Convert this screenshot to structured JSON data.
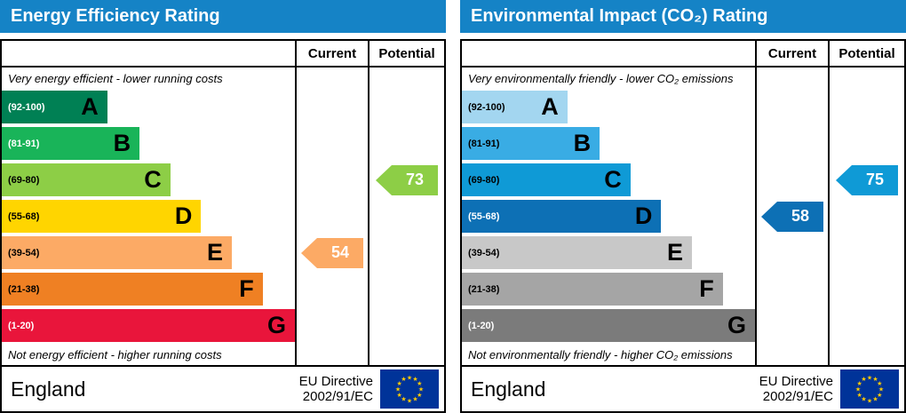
{
  "colors": {
    "title_bg": "#1583c6",
    "title_text": "#ffffff",
    "border": "#000000",
    "eu_flag_bg": "#003399",
    "eu_flag_stars": "#ffcc00"
  },
  "panels": [
    {
      "title": "Energy Efficiency Rating",
      "columns": {
        "current": "Current",
        "potential": "Potential"
      },
      "top_caption": "Very energy efficient - lower running costs",
      "bottom_caption": "Not energy efficient - higher running costs",
      "bands": [
        {
          "letter": "A",
          "range": "(92-100)",
          "color": "#008054",
          "range_text": "#ffffff"
        },
        {
          "letter": "B",
          "range": "(81-91)",
          "color": "#19b459",
          "range_text": "#ffffff"
        },
        {
          "letter": "C",
          "range": "(69-80)",
          "color": "#8dce46",
          "range_text": "#000000"
        },
        {
          "letter": "D",
          "range": "(55-68)",
          "color": "#ffd500",
          "range_text": "#000000"
        },
        {
          "letter": "E",
          "range": "(39-54)",
          "color": "#fcaa65",
          "range_text": "#000000"
        },
        {
          "letter": "F",
          "range": "(21-38)",
          "color": "#ef8023",
          "range_text": "#000000"
        },
        {
          "letter": "G",
          "range": "(1-20)",
          "color": "#e9153b",
          "range_text": "#ffffff"
        }
      ],
      "current": {
        "value": 54,
        "band": "E",
        "color": "#fcaa65",
        "text_color": "#ffffff"
      },
      "potential": {
        "value": 73,
        "band": "C",
        "color": "#8dce46",
        "text_color": "#ffffff"
      },
      "footer": {
        "region": "England",
        "directive_line1": "EU Directive",
        "directive_line2": "2002/91/EC"
      }
    },
    {
      "title": "Environmental Impact (CO₂) Rating",
      "columns": {
        "current": "Current",
        "potential": "Potential"
      },
      "top_caption": "Very environmentally friendly - lower CO₂ emissions",
      "bottom_caption": "Not environmentally friendly - higher CO₂ emissions",
      "bands": [
        {
          "letter": "A",
          "range": "(92-100)",
          "color": "#a3d6f0",
          "range_text": "#000000"
        },
        {
          "letter": "B",
          "range": "(81-91)",
          "color": "#39ace4",
          "range_text": "#000000"
        },
        {
          "letter": "C",
          "range": "(69-80)",
          "color": "#0f9ad6",
          "range_text": "#000000"
        },
        {
          "letter": "D",
          "range": "(55-68)",
          "color": "#0d70b5",
          "range_text": "#ffffff"
        },
        {
          "letter": "E",
          "range": "(39-54)",
          "color": "#c8c8c8",
          "range_text": "#000000"
        },
        {
          "letter": "F",
          "range": "(21-38)",
          "color": "#a5a5a5",
          "range_text": "#000000"
        },
        {
          "letter": "G",
          "range": "(1-20)",
          "color": "#7b7b7b",
          "range_text": "#ffffff"
        }
      ],
      "current": {
        "value": 58,
        "band": "D",
        "color": "#0d70b5",
        "text_color": "#ffffff"
      },
      "potential": {
        "value": 75,
        "band": "C",
        "color": "#0f9ad6",
        "text_color": "#ffffff"
      },
      "footer": {
        "region": "England",
        "directive_line1": "EU Directive",
        "directive_line2": "2002/91/EC"
      }
    }
  ],
  "chart_data": [
    {
      "type": "bar",
      "title": "Energy Efficiency Rating",
      "categories": [
        "A (92-100)",
        "B (81-91)",
        "C (69-80)",
        "D (55-68)",
        "E (39-54)",
        "F (21-38)",
        "G (1-20)"
      ],
      "series": [
        {
          "name": "Current",
          "value": 54,
          "band": "E"
        },
        {
          "name": "Potential",
          "value": 73,
          "band": "C"
        }
      ],
      "ylim": [
        1,
        100
      ],
      "annotations": [
        "Very energy efficient - lower running costs",
        "Not energy efficient - higher running costs"
      ]
    },
    {
      "type": "bar",
      "title": "Environmental Impact (CO₂) Rating",
      "categories": [
        "A (92-100)",
        "B (81-91)",
        "C (69-80)",
        "D (55-68)",
        "E (39-54)",
        "F (21-38)",
        "G (1-20)"
      ],
      "series": [
        {
          "name": "Current",
          "value": 58,
          "band": "D"
        },
        {
          "name": "Potential",
          "value": 75,
          "band": "C"
        }
      ],
      "ylim": [
        1,
        100
      ],
      "annotations": [
        "Very environmentally friendly - lower CO₂ emissions",
        "Not environmentally friendly - higher CO₂ emissions"
      ]
    }
  ]
}
